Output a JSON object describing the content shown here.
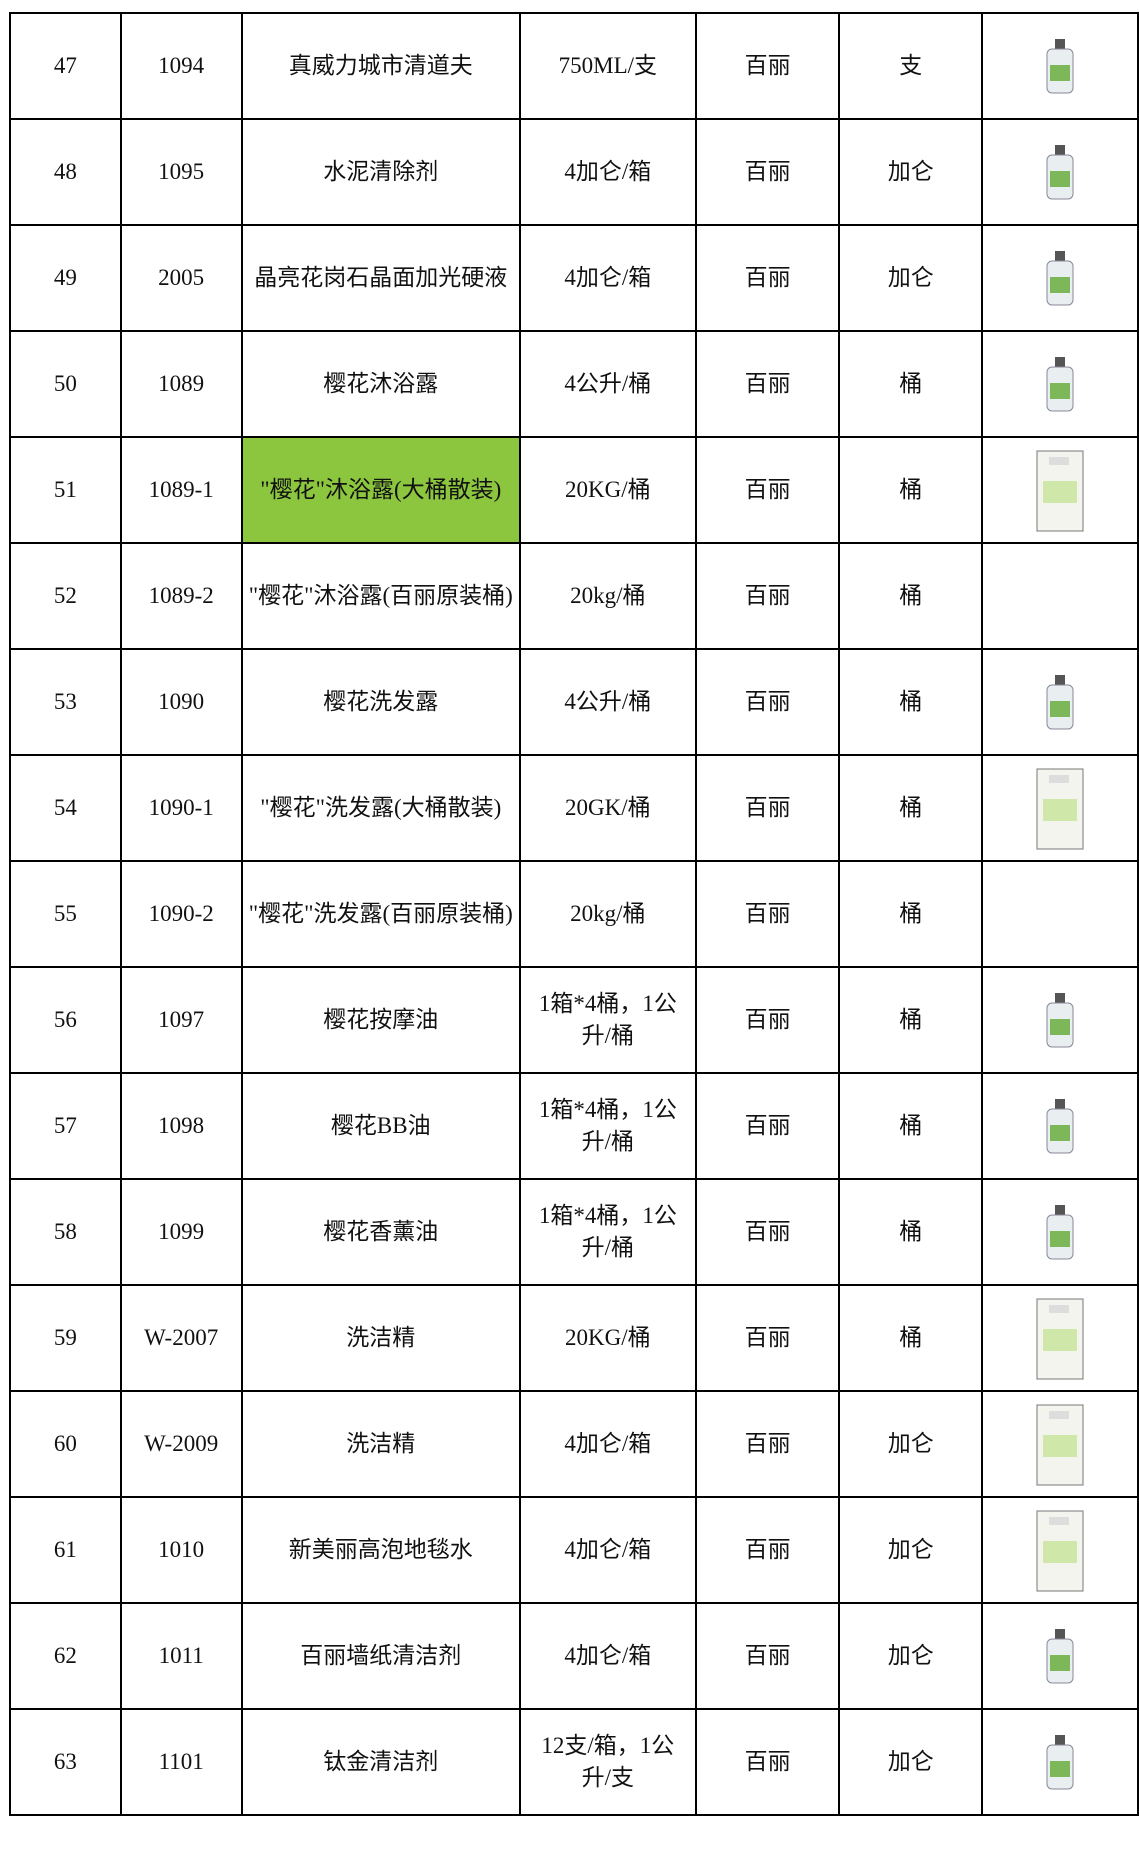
{
  "table": {
    "rows": [
      [
        "47",
        "1094",
        "真威力城市清道夫",
        "750ML/支",
        "百丽",
        "支"
      ],
      [
        "48",
        "1095",
        "水泥清除剂",
        "4加仑/箱",
        "百丽",
        "加仑"
      ],
      [
        "49",
        "2005",
        "晶亮花岗石晶面加光硬液",
        "4加仑/箱",
        "百丽",
        "加仑"
      ],
      [
        "50",
        "1089",
        "樱花沐浴露",
        "4公升/桶",
        "百丽",
        "桶"
      ],
      [
        "51",
        "1089-1",
        "\"樱花\"沐浴露(大桶散装)",
        "20KG/桶",
        "百丽",
        "桶"
      ],
      [
        "52",
        "1089-2",
        "\"樱花\"沐浴露(百丽原装桶)",
        "20kg/桶",
        "百丽",
        "桶"
      ],
      [
        "53",
        "1090",
        "樱花洗发露",
        "4公升/桶",
        "百丽",
        "桶"
      ],
      [
        "54",
        "1090-1",
        "\"樱花\"洗发露(大桶散装)",
        "20GK/桶",
        "百丽",
        "桶"
      ],
      [
        "55",
        "1090-2",
        "\"樱花\"洗发露(百丽原装桶)",
        "20kg/桶",
        "百丽",
        "桶"
      ],
      [
        "56",
        "1097",
        "樱花按摩油",
        "1箱*4桶，1公升/桶",
        "百丽",
        "桶"
      ],
      [
        "57",
        "1098",
        "樱花BB油",
        "1箱*4桶，1公升/桶",
        "百丽",
        "桶"
      ],
      [
        "58",
        "1099",
        "樱花香薰油",
        "1箱*4桶，1公升/桶",
        "百丽",
        "桶"
      ],
      [
        "59",
        "W-2007",
        "洗洁精",
        "20KG/桶",
        "百丽",
        "桶"
      ],
      [
        "60",
        "W-2009",
        "洗洁精",
        "4加仑/箱",
        "百丽",
        "加仑"
      ],
      [
        "61",
        "1010",
        "新美丽高泡地毯水",
        "4加仑/箱",
        "百丽",
        "加仑"
      ],
      [
        "62",
        "1011",
        "百丽墙纸清洁剂",
        "4加仑/箱",
        "百丽",
        "加仑"
      ],
      [
        "63",
        "1101",
        "钛金清洁剂",
        "12支/箱，1公升/支",
        "百丽",
        "加仑"
      ]
    ]
  }
}
